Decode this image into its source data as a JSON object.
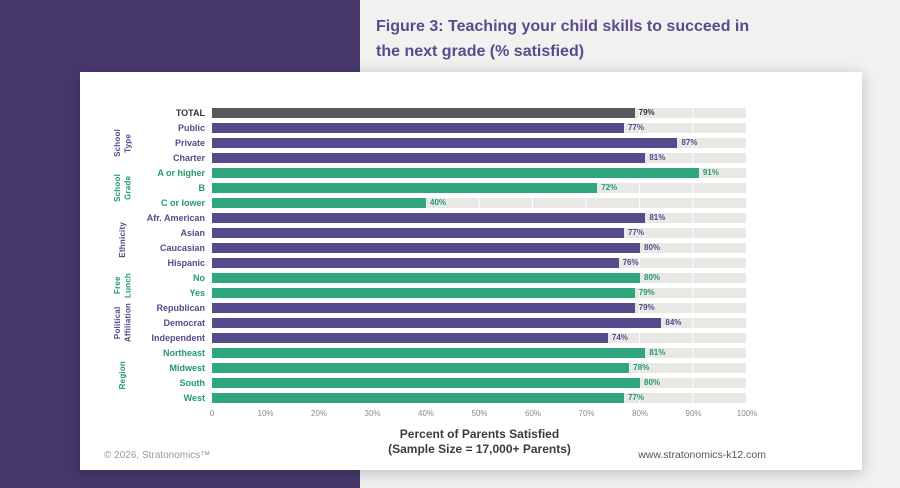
{
  "chart_data": {
    "type": "bar",
    "orientation": "horizontal",
    "title": "Figure 3: Teaching your child skills to succeed in\nthe next grade (% satisfied)",
    "xlabel": "Percent of Parents Satisfied",
    "sample_note": "(Sample Size = 17,000+ Parents)",
    "xlim": [
      0,
      100
    ],
    "ticks": [
      "0",
      "10%",
      "20%",
      "30%",
      "40%",
      "50%",
      "60%",
      "70%",
      "80%",
      "90%",
      "100%"
    ],
    "rows": [
      {
        "label": "TOTAL",
        "value": 79,
        "series": "total"
      },
      {
        "label": "Public",
        "value": 77,
        "series": "purple"
      },
      {
        "label": "Private",
        "value": 87,
        "series": "purple"
      },
      {
        "label": "Charter",
        "value": 81,
        "series": "purple"
      },
      {
        "label": "A or higher",
        "value": 91,
        "series": "green"
      },
      {
        "label": "B",
        "value": 72,
        "series": "green"
      },
      {
        "label": "C or lower",
        "value": 40,
        "series": "green"
      },
      {
        "label": "Afr. American",
        "value": 81,
        "series": "purple"
      },
      {
        "label": "Asian",
        "value": 77,
        "series": "purple"
      },
      {
        "label": "Caucasian",
        "value": 80,
        "series": "purple"
      },
      {
        "label": "Hispanic",
        "value": 76,
        "series": "purple"
      },
      {
        "label": "No",
        "value": 80,
        "series": "green"
      },
      {
        "label": "Yes",
        "value": 79,
        "series": "green"
      },
      {
        "label": "Republican",
        "value": 79,
        "series": "purple"
      },
      {
        "label": "Democrat",
        "value": 84,
        "series": "purple"
      },
      {
        "label": "Independent",
        "value": 74,
        "series": "purple"
      },
      {
        "label": "Northeast",
        "value": 81,
        "series": "green"
      },
      {
        "label": "Midwest",
        "value": 78,
        "series": "green"
      },
      {
        "label": "South",
        "value": 80,
        "series": "green"
      },
      {
        "label": "West",
        "value": 77,
        "series": "green"
      }
    ],
    "groups": [
      {
        "label": "School\nType",
        "color": "purple",
        "start": 1,
        "span": 3
      },
      {
        "label": "School\nGrade",
        "color": "green",
        "start": 4,
        "span": 3
      },
      {
        "label": "Ethnicity",
        "color": "purple",
        "start": 7,
        "span": 4
      },
      {
        "label": "Free\nLunch",
        "color": "green",
        "start": 11,
        "span": 2
      },
      {
        "label": "Political\nAffiliation",
        "color": "purple",
        "start": 13,
        "span": 3
      },
      {
        "label": "Region",
        "color": "green",
        "start": 16,
        "span": 4
      }
    ],
    "colors": {
      "total_bar": "#58595b",
      "purple_bar": "#554a8c",
      "green_bar": "#2fa67d",
      "track": "#e9e8e5",
      "panel_purple": "#47386c",
      "title_purple": "#5d4a8e"
    },
    "legend": "none",
    "grid": "vertical white lines every 10%"
  },
  "footer": {
    "copyright": "© 2026, Stratonomics™",
    "website": "www.stratonomics-k12.com"
  }
}
